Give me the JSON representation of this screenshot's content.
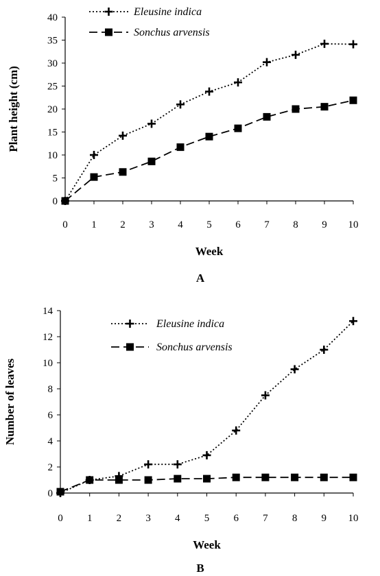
{
  "chart_data": [
    {
      "type": "line",
      "panel_label": "A",
      "xlabel": "Week",
      "ylabel": "Plant height (cm)",
      "x": [
        0,
        1,
        2,
        3,
        4,
        5,
        6,
        7,
        8,
        9,
        10
      ],
      "xlim": [
        0,
        10
      ],
      "ylim": [
        0,
        40
      ],
      "yticks": [
        0,
        5,
        10,
        15,
        20,
        25,
        30,
        35,
        40
      ],
      "grid": false,
      "legend_position": "top-left",
      "series": [
        {
          "name": "Eleusine indica",
          "line_style": "dotted",
          "marker": "plus",
          "values": [
            0,
            10,
            14.2,
            16.8,
            21,
            23.8,
            25.8,
            30.2,
            31.8,
            34.2,
            34.1
          ]
        },
        {
          "name": "Sonchus arvensis",
          "line_style": "dashed",
          "marker": "square",
          "values": [
            0,
            5.2,
            6.3,
            8.6,
            11.7,
            14,
            15.8,
            18.3,
            20,
            20.5,
            21.9
          ]
        }
      ]
    },
    {
      "type": "line",
      "panel_label": "B",
      "xlabel": "Week",
      "ylabel": "Number of leaves",
      "x": [
        0,
        1,
        2,
        3,
        4,
        5,
        6,
        7,
        8,
        9,
        10
      ],
      "xlim": [
        0,
        10
      ],
      "ylim": [
        0,
        14
      ],
      "yticks": [
        0,
        2,
        4,
        6,
        8,
        10,
        12,
        14
      ],
      "grid": false,
      "legend_position": "top-left",
      "series": [
        {
          "name": "Eleusine indica",
          "line_style": "dotted",
          "marker": "plus",
          "values": [
            0,
            1,
            1.3,
            2.2,
            2.2,
            2.9,
            4.8,
            7.5,
            9.5,
            11,
            13.2
          ]
        },
        {
          "name": "Sonchus arvensis",
          "line_style": "dashed",
          "marker": "square",
          "values": [
            0.1,
            1,
            1,
            1,
            1.1,
            1.1,
            1.2,
            1.2,
            1.2,
            1.2,
            1.2
          ]
        }
      ]
    }
  ]
}
